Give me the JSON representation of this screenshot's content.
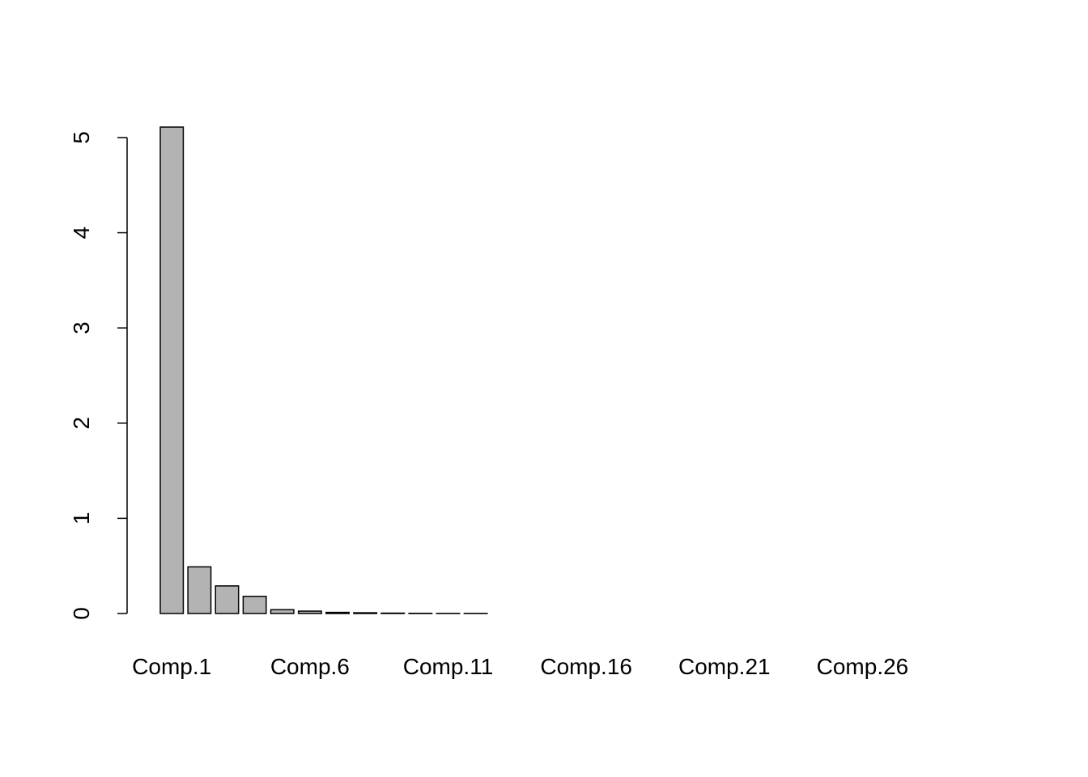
{
  "chart_data": {
    "type": "bar",
    "categories": [
      "Comp.1",
      null,
      null,
      null,
      null,
      "Comp.6",
      null,
      null,
      null,
      null,
      "Comp.11",
      null,
      null,
      null,
      null,
      "Comp.16",
      null,
      null,
      null,
      null,
      "Comp.21",
      null,
      null,
      null,
      null,
      "Comp.26",
      null,
      null,
      null,
      null
    ],
    "values": [
      5.11,
      0.49,
      0.29,
      0.18,
      0.04,
      0.025,
      0.012,
      0.008,
      0.004,
      0.002,
      0.001,
      0.001,
      0,
      0,
      0,
      0,
      0,
      0,
      0,
      0,
      0,
      0,
      0,
      0,
      0,
      0,
      0,
      0,
      0,
      0
    ],
    "color": "#b3b3b3",
    "ylim": [
      0,
      5.11
    ],
    "yticks": [
      0,
      1,
      2,
      3,
      4,
      5
    ],
    "grid": false
  }
}
